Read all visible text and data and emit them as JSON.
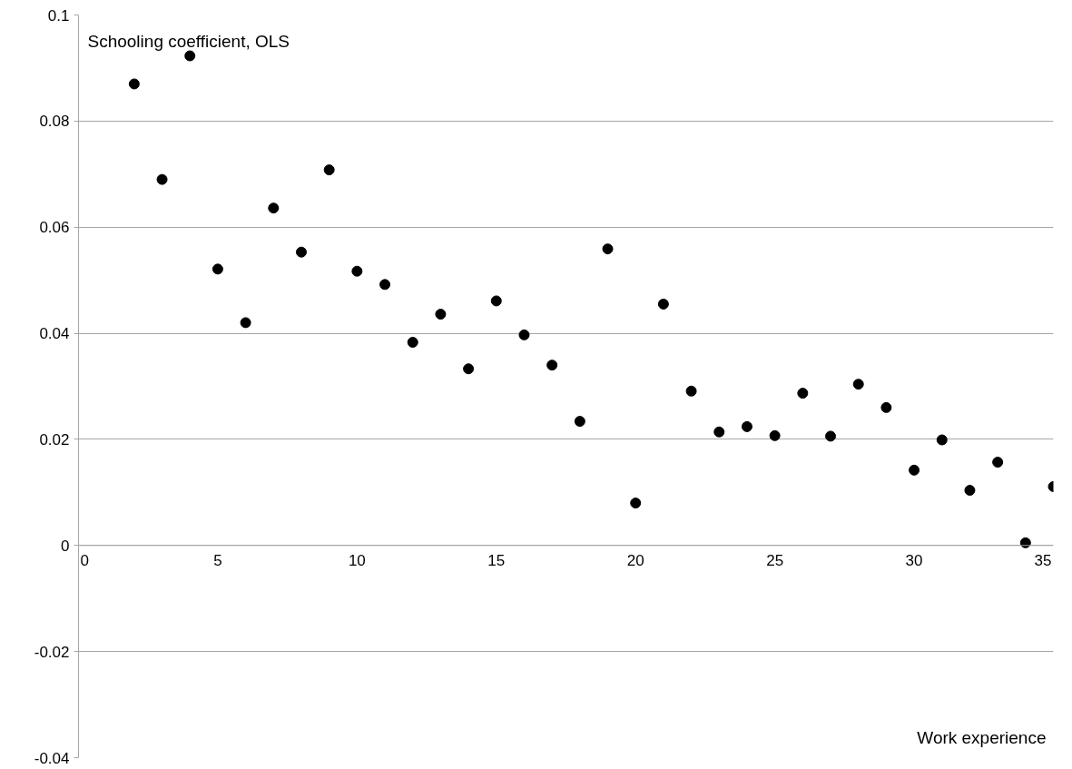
{
  "chart_data": {
    "type": "scatter",
    "xlabel": "Work experience",
    "ylabel": "Schooling coefficient, OLS",
    "x": [
      2,
      3,
      4,
      5,
      6,
      7,
      8,
      9,
      10,
      11,
      12,
      13,
      14,
      15,
      16,
      17,
      18,
      19,
      20,
      21,
      22,
      23,
      24,
      25,
      26,
      27,
      28,
      29,
      30,
      31,
      32,
      33,
      34,
      35
    ],
    "series": [
      {
        "color": "#000000",
        "values": [
          0.087,
          0.069,
          0.0923,
          0.0521,
          0.042,
          0.0636,
          0.0553,
          0.0708,
          0.0517,
          0.0492,
          0.0383,
          0.0436,
          0.0333,
          0.0461,
          0.0397,
          0.034,
          0.0234,
          0.0559,
          0.008,
          0.0455,
          0.0291,
          0.0214,
          0.0224,
          0.0207,
          0.0287,
          0.0206,
          0.0304,
          0.026,
          0.0142,
          0.0199,
          0.0104,
          0.0157,
          0.0005,
          0.0111
        ]
      }
    ],
    "xlim": [
      0,
      35
    ],
    "xticks": [
      0,
      5,
      10,
      15,
      20,
      25,
      30,
      35
    ],
    "ylim": [
      -0.04,
      0.1
    ],
    "yticks": [
      -0.04,
      -0.02,
      0,
      0.02,
      0.04,
      0.06,
      0.08,
      0.1
    ],
    "grid": "y",
    "marker": "circle"
  }
}
